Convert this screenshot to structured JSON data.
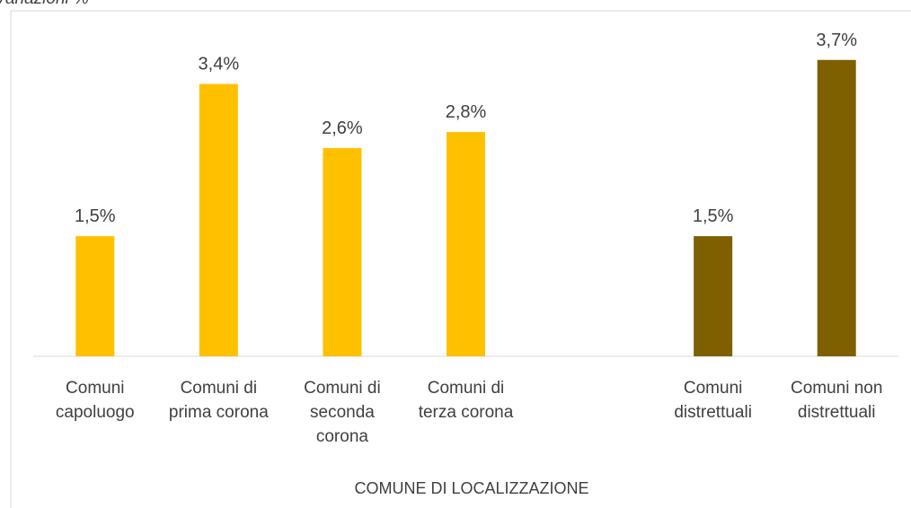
{
  "chart_data": {
    "type": "bar",
    "title": "Variazioni %",
    "categories": [
      "Comuni capoluogo",
      "Comuni di prima corona",
      "Comuni di seconda corona",
      "Comuni di terza corona",
      null,
      "Comuni distrettuali",
      "Comuni non distrettuali"
    ],
    "values": [
      1.5,
      3.4,
      2.6,
      2.8,
      null,
      1.5,
      3.7
    ],
    "value_labels": [
      "1,5%",
      "3,4%",
      "2,6%",
      "2,8%",
      null,
      "1,5%",
      "3,7%"
    ],
    "colors": [
      "#ffc000",
      "#ffc000",
      "#ffc000",
      "#ffc000",
      null,
      "#7f6000",
      "#7f6000"
    ],
    "x_label": "COMUNE DI LOCALIZZAZIONE",
    "ylim": [
      0,
      4
    ]
  }
}
